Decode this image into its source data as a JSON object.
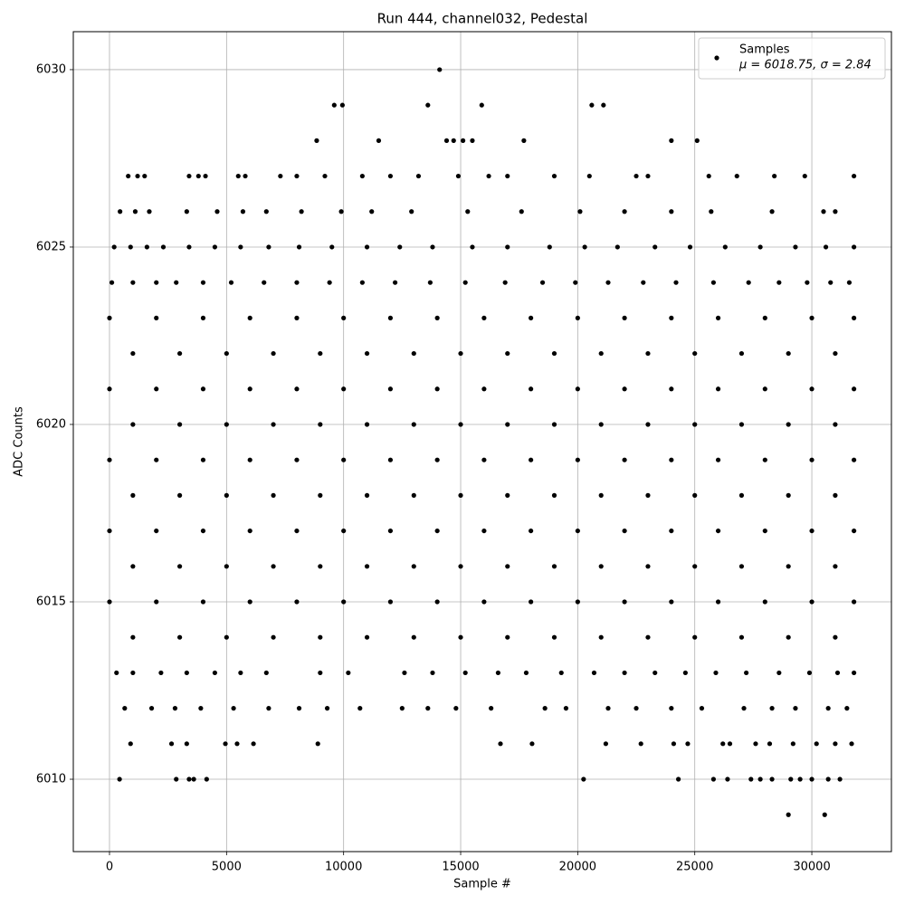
{
  "chart_data": {
    "type": "scatter",
    "title": "Run 444, channel032, Pedestal",
    "x_label": "Sample #",
    "y_label": "ADC Counts",
    "xlim": [
      -1546,
      33400
    ],
    "ylim": [
      6007.96,
      6031.07
    ],
    "xticks": [
      0,
      5000,
      10000,
      15000,
      20000,
      25000,
      30000
    ],
    "yticks": [
      6010,
      6015,
      6020,
      6025,
      6030
    ],
    "grid": true,
    "legend": "upper right",
    "legend_stats": "μ = 6018.75, σ = 2.84",
    "series": [
      {
        "name": "Samples",
        "color": "#000000",
        "x": [
          14100,
          9600,
          9950,
          13600,
          15900,
          20600,
          21100,
          8850,
          11500,
          14400,
          14700,
          15100,
          15500,
          17700,
          24000,
          25100,
          800,
          1200,
          1500,
          3400,
          3800,
          4100,
          5500,
          5800,
          7300,
          8000,
          9200,
          10800,
          12000,
          13200,
          14900,
          16200,
          17000,
          19000,
          20500,
          22500,
          23000,
          25600,
          26800,
          28400,
          29700,
          31800,
          450,
          1100,
          1700,
          3300,
          4600,
          5700,
          6700,
          8200,
          9900,
          11200,
          12900,
          15300,
          17600,
          20100,
          22000,
          24000,
          25700,
          28300,
          30500,
          31000,
          200,
          900,
          1600,
          2300,
          3400,
          4500,
          5600,
          6800,
          8100,
          9500,
          11000,
          12400,
          13800,
          15500,
          17000,
          18800,
          20300,
          21700,
          23300,
          24800,
          26300,
          27800,
          29300,
          30600,
          31800,
          100,
          1000,
          2000,
          2850,
          4000,
          5200,
          6600,
          8000,
          9400,
          10800,
          12200,
          13700,
          15200,
          16900,
          18500,
          19900,
          21300,
          22800,
          24200,
          25800,
          27300,
          28600,
          29800,
          30800,
          31600,
          0,
          2000,
          4000,
          6000,
          8000,
          10000,
          12000,
          14000,
          16000,
          18000,
          20000,
          22000,
          24000,
          26000,
          28000,
          30000,
          31800,
          1000,
          3000,
          5000,
          7000,
          9000,
          11000,
          13000,
          15000,
          17000,
          19000,
          21000,
          23000,
          25000,
          27000,
          29000,
          31000,
          0,
          2000,
          4000,
          6000,
          8000,
          10000,
          12000,
          14000,
          16000,
          18000,
          20000,
          22000,
          24000,
          26000,
          28000,
          30000,
          31800,
          1000,
          3000,
          5000,
          7000,
          9000,
          11000,
          13000,
          15000,
          17000,
          19000,
          21000,
          23000,
          25000,
          27000,
          29000,
          31000,
          0,
          2000,
          4000,
          6000,
          8000,
          10000,
          12000,
          14000,
          16000,
          18000,
          20000,
          22000,
          24000,
          26000,
          28000,
          30000,
          31800,
          1000,
          3000,
          5000,
          7000,
          9000,
          11000,
          13000,
          15000,
          17000,
          19000,
          21000,
          23000,
          25000,
          27000,
          29000,
          31000,
          0,
          2000,
          4000,
          6000,
          8000,
          10000,
          12000,
          14000,
          16000,
          18000,
          20000,
          22000,
          24000,
          26000,
          28000,
          30000,
          31800,
          1000,
          3000,
          5000,
          7000,
          9000,
          11000,
          13000,
          15000,
          17000,
          19000,
          21000,
          23000,
          25000,
          27000,
          29000,
          31000,
          0,
          2000,
          4000,
          6000,
          8000,
          10000,
          12000,
          14000,
          16000,
          18000,
          20000,
          22000,
          24000,
          26000,
          28000,
          30000,
          31800,
          1000,
          3000,
          5000,
          7000,
          9000,
          11000,
          13000,
          15000,
          17000,
          19000,
          21000,
          23000,
          25000,
          27000,
          29000,
          31000,
          300,
          1000,
          2200,
          3300,
          4500,
          5600,
          6700,
          9000,
          10200,
          12600,
          13800,
          15200,
          16600,
          17800,
          19300,
          20700,
          22000,
          23300,
          24600,
          25900,
          27200,
          28600,
          29900,
          31100,
          31800,
          650,
          1800,
          2800,
          3900,
          5300,
          6800,
          8100,
          9300,
          10700,
          12500,
          13600,
          14800,
          16300,
          18600,
          19500,
          21300,
          22500,
          24000,
          25300,
          27100,
          28300,
          29300,
          30700,
          31500,
          900,
          2650,
          3300,
          4950,
          5450,
          6150,
          8900,
          16700,
          18050,
          21200,
          22700,
          24100,
          24700,
          26200,
          26500,
          27600,
          28200,
          29200,
          30200,
          31000,
          31700,
          430,
          2850,
          3400,
          3600,
          4150,
          20250,
          24300,
          25800,
          26400,
          27400,
          27800,
          28300,
          29100,
          29500,
          30000,
          30700,
          31200,
          29000,
          30550
        ],
        "values": [
          6030,
          6029,
          6029,
          6029,
          6029,
          6029,
          6029,
          6028,
          6028,
          6028,
          6028,
          6028,
          6028,
          6028,
          6028,
          6028,
          6027,
          6027,
          6027,
          6027,
          6027,
          6027,
          6027,
          6027,
          6027,
          6027,
          6027,
          6027,
          6027,
          6027,
          6027,
          6027,
          6027,
          6027,
          6027,
          6027,
          6027,
          6027,
          6027,
          6027,
          6027,
          6027,
          6026,
          6026,
          6026,
          6026,
          6026,
          6026,
          6026,
          6026,
          6026,
          6026,
          6026,
          6026,
          6026,
          6026,
          6026,
          6026,
          6026,
          6026,
          6026,
          6026,
          6025,
          6025,
          6025,
          6025,
          6025,
          6025,
          6025,
          6025,
          6025,
          6025,
          6025,
          6025,
          6025,
          6025,
          6025,
          6025,
          6025,
          6025,
          6025,
          6025,
          6025,
          6025,
          6025,
          6025,
          6025,
          6024,
          6024,
          6024,
          6024,
          6024,
          6024,
          6024,
          6024,
          6024,
          6024,
          6024,
          6024,
          6024,
          6024,
          6024,
          6024,
          6024,
          6024,
          6024,
          6024,
          6024,
          6024,
          6024,
          6024,
          6024,
          6023,
          6023,
          6023,
          6023,
          6023,
          6023,
          6023,
          6023,
          6023,
          6023,
          6023,
          6023,
          6023,
          6023,
          6023,
          6023,
          6023,
          6022,
          6022,
          6022,
          6022,
          6022,
          6022,
          6022,
          6022,
          6022,
          6022,
          6022,
          6022,
          6022,
          6022,
          6022,
          6022,
          6021,
          6021,
          6021,
          6021,
          6021,
          6021,
          6021,
          6021,
          6021,
          6021,
          6021,
          6021,
          6021,
          6021,
          6021,
          6021,
          6021,
          6020,
          6020,
          6020,
          6020,
          6020,
          6020,
          6020,
          6020,
          6020,
          6020,
          6020,
          6020,
          6020,
          6020,
          6020,
          6020,
          6019,
          6019,
          6019,
          6019,
          6019,
          6019,
          6019,
          6019,
          6019,
          6019,
          6019,
          6019,
          6019,
          6019,
          6019,
          6019,
          6019,
          6018,
          6018,
          6018,
          6018,
          6018,
          6018,
          6018,
          6018,
          6018,
          6018,
          6018,
          6018,
          6018,
          6018,
          6018,
          6018,
          6017,
          6017,
          6017,
          6017,
          6017,
          6017,
          6017,
          6017,
          6017,
          6017,
          6017,
          6017,
          6017,
          6017,
          6017,
          6017,
          6017,
          6016,
          6016,
          6016,
          6016,
          6016,
          6016,
          6016,
          6016,
          6016,
          6016,
          6016,
          6016,
          6016,
          6016,
          6016,
          6016,
          6015,
          6015,
          6015,
          6015,
          6015,
          6015,
          6015,
          6015,
          6015,
          6015,
          6015,
          6015,
          6015,
          6015,
          6015,
          6015,
          6015,
          6014,
          6014,
          6014,
          6014,
          6014,
          6014,
          6014,
          6014,
          6014,
          6014,
          6014,
          6014,
          6014,
          6014,
          6014,
          6014,
          6013,
          6013,
          6013,
          6013,
          6013,
          6013,
          6013,
          6013,
          6013,
          6013,
          6013,
          6013,
          6013,
          6013,
          6013,
          6013,
          6013,
          6013,
          6013,
          6013,
          6013,
          6013,
          6013,
          6013,
          6013,
          6012,
          6012,
          6012,
          6012,
          6012,
          6012,
          6012,
          6012,
          6012,
          6012,
          6012,
          6012,
          6012,
          6012,
          6012,
          6012,
          6012,
          6012,
          6012,
          6012,
          6012,
          6012,
          6012,
          6012,
          6011,
          6011,
          6011,
          6011,
          6011,
          6011,
          6011,
          6011,
          6011,
          6011,
          6011,
          6011,
          6011,
          6011,
          6011,
          6011,
          6011,
          6011,
          6011,
          6011,
          6011,
          6010,
          6010,
          6010,
          6010,
          6010,
          6010,
          6010,
          6010,
          6010,
          6010,
          6010,
          6010,
          6010,
          6010,
          6010,
          6010,
          6010,
          6009,
          6009
        ]
      }
    ]
  }
}
